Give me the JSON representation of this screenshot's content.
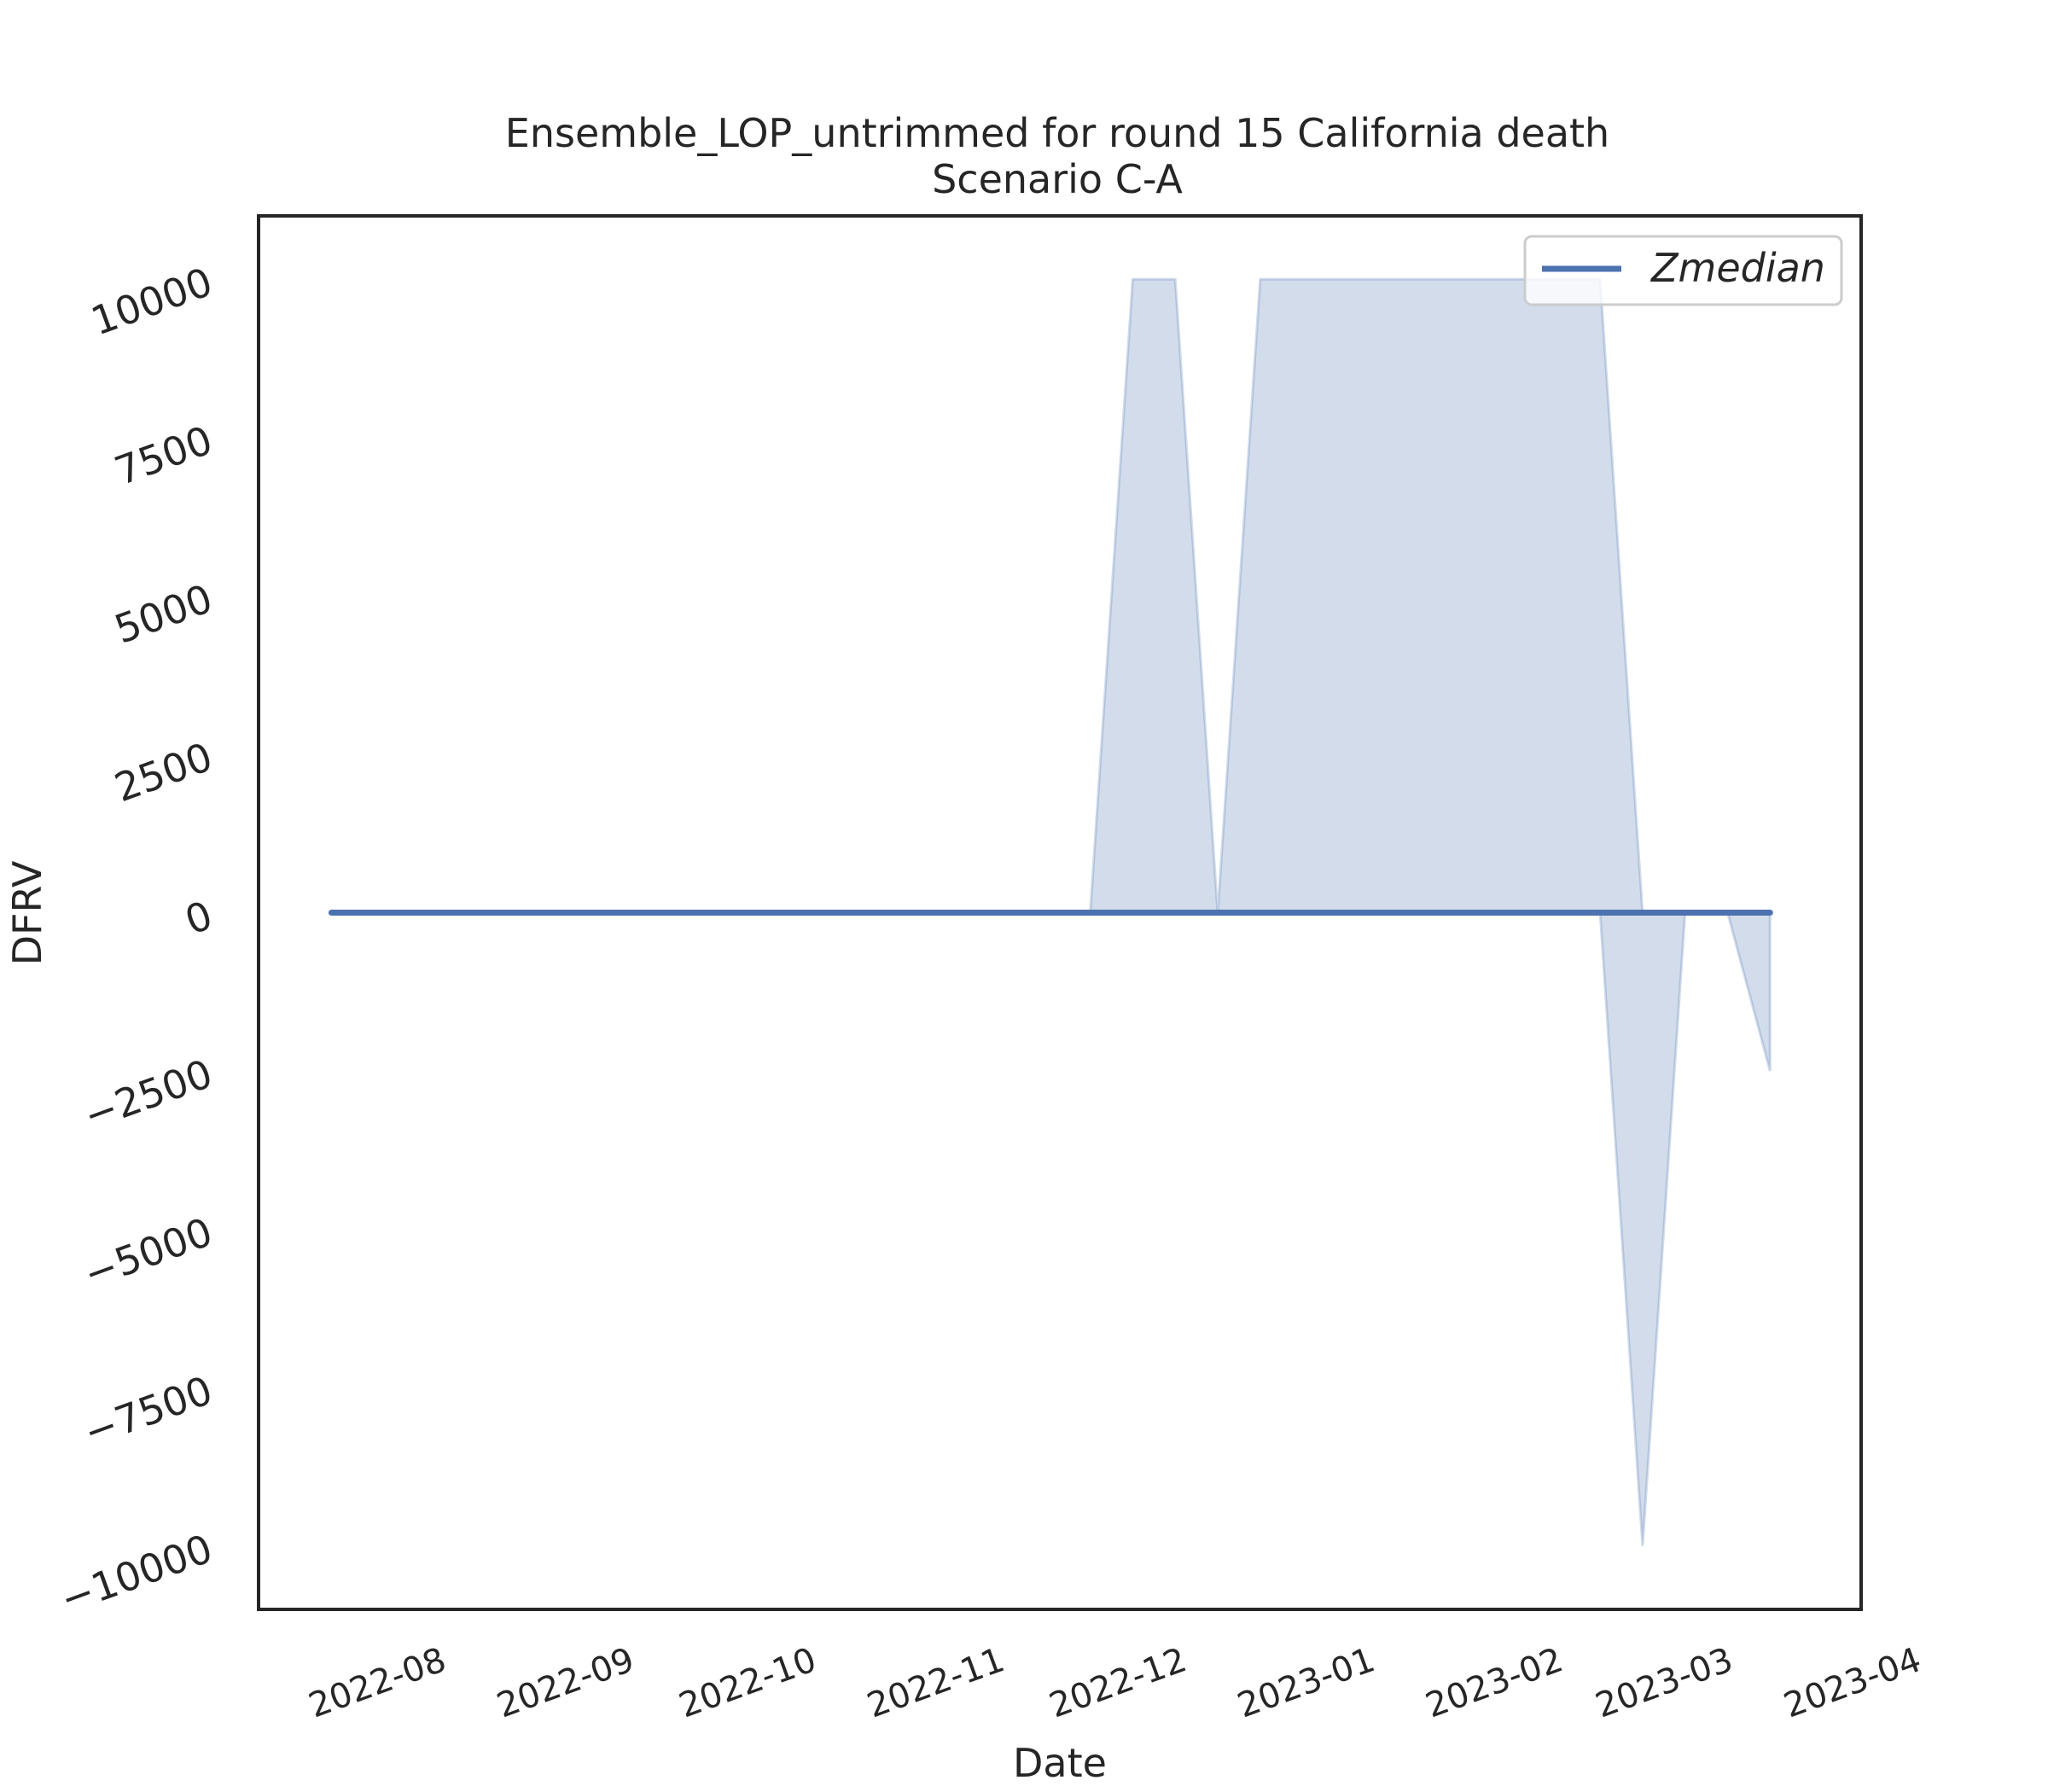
{
  "chart_data": {
    "type": "area",
    "title": "Ensemble_LOP_untrimmed for round 15 California death",
    "subtitle": "Scenario C-A",
    "xlabel": "Date",
    "ylabel": "DFRV",
    "x_ticks": [
      "2022-08",
      "2022-09",
      "2022-10",
      "2022-11",
      "2022-12",
      "2023-01",
      "2023-02",
      "2023-03",
      "2023-04"
    ],
    "y_ticks": [
      10000,
      7500,
      5000,
      2500,
      0,
      -2500,
      -5000,
      -7500,
      -10000
    ],
    "y_tick_labels": [
      "10000",
      "7500",
      "5000",
      "2500",
      "0",
      "−2500",
      "−5000",
      "−7500",
      "−10000"
    ],
    "xlim": [
      "2022-07-12",
      "2023-04-02"
    ],
    "ylim": [
      -11000,
      11000
    ],
    "grid": false,
    "legend_position": "top-right",
    "colors": {
      "line": "#4c72b0",
      "band": "#4c72b0",
      "axes": "#262626"
    },
    "series": [
      {
        "name": "Zmedian",
        "x": [
          "2022-07-24",
          "2023-03-18"
        ],
        "y": [
          0,
          0
        ]
      }
    ],
    "band": {
      "x": [
        "2022-07-24",
        "2022-11-26",
        "2022-12-03",
        "2022-12-10",
        "2022-12-17",
        "2022-12-24",
        "2022-12-31",
        "2023-01-07",
        "2023-01-14",
        "2023-01-21",
        "2023-01-28",
        "2023-02-04",
        "2023-02-11",
        "2023-02-18",
        "2023-02-25",
        "2023-03-04",
        "2023-03-11",
        "2023-03-18"
      ],
      "lower": [
        0,
        0,
        0,
        0,
        0,
        0,
        0,
        0,
        0,
        0,
        0,
        0,
        0,
        0,
        -10000,
        0,
        0,
        -2500
      ],
      "upper": [
        0,
        0,
        10000,
        10000,
        0,
        10000,
        10000,
        10000,
        10000,
        10000,
        10000,
        10000,
        10000,
        10000,
        0,
        0,
        0,
        0
      ]
    }
  }
}
